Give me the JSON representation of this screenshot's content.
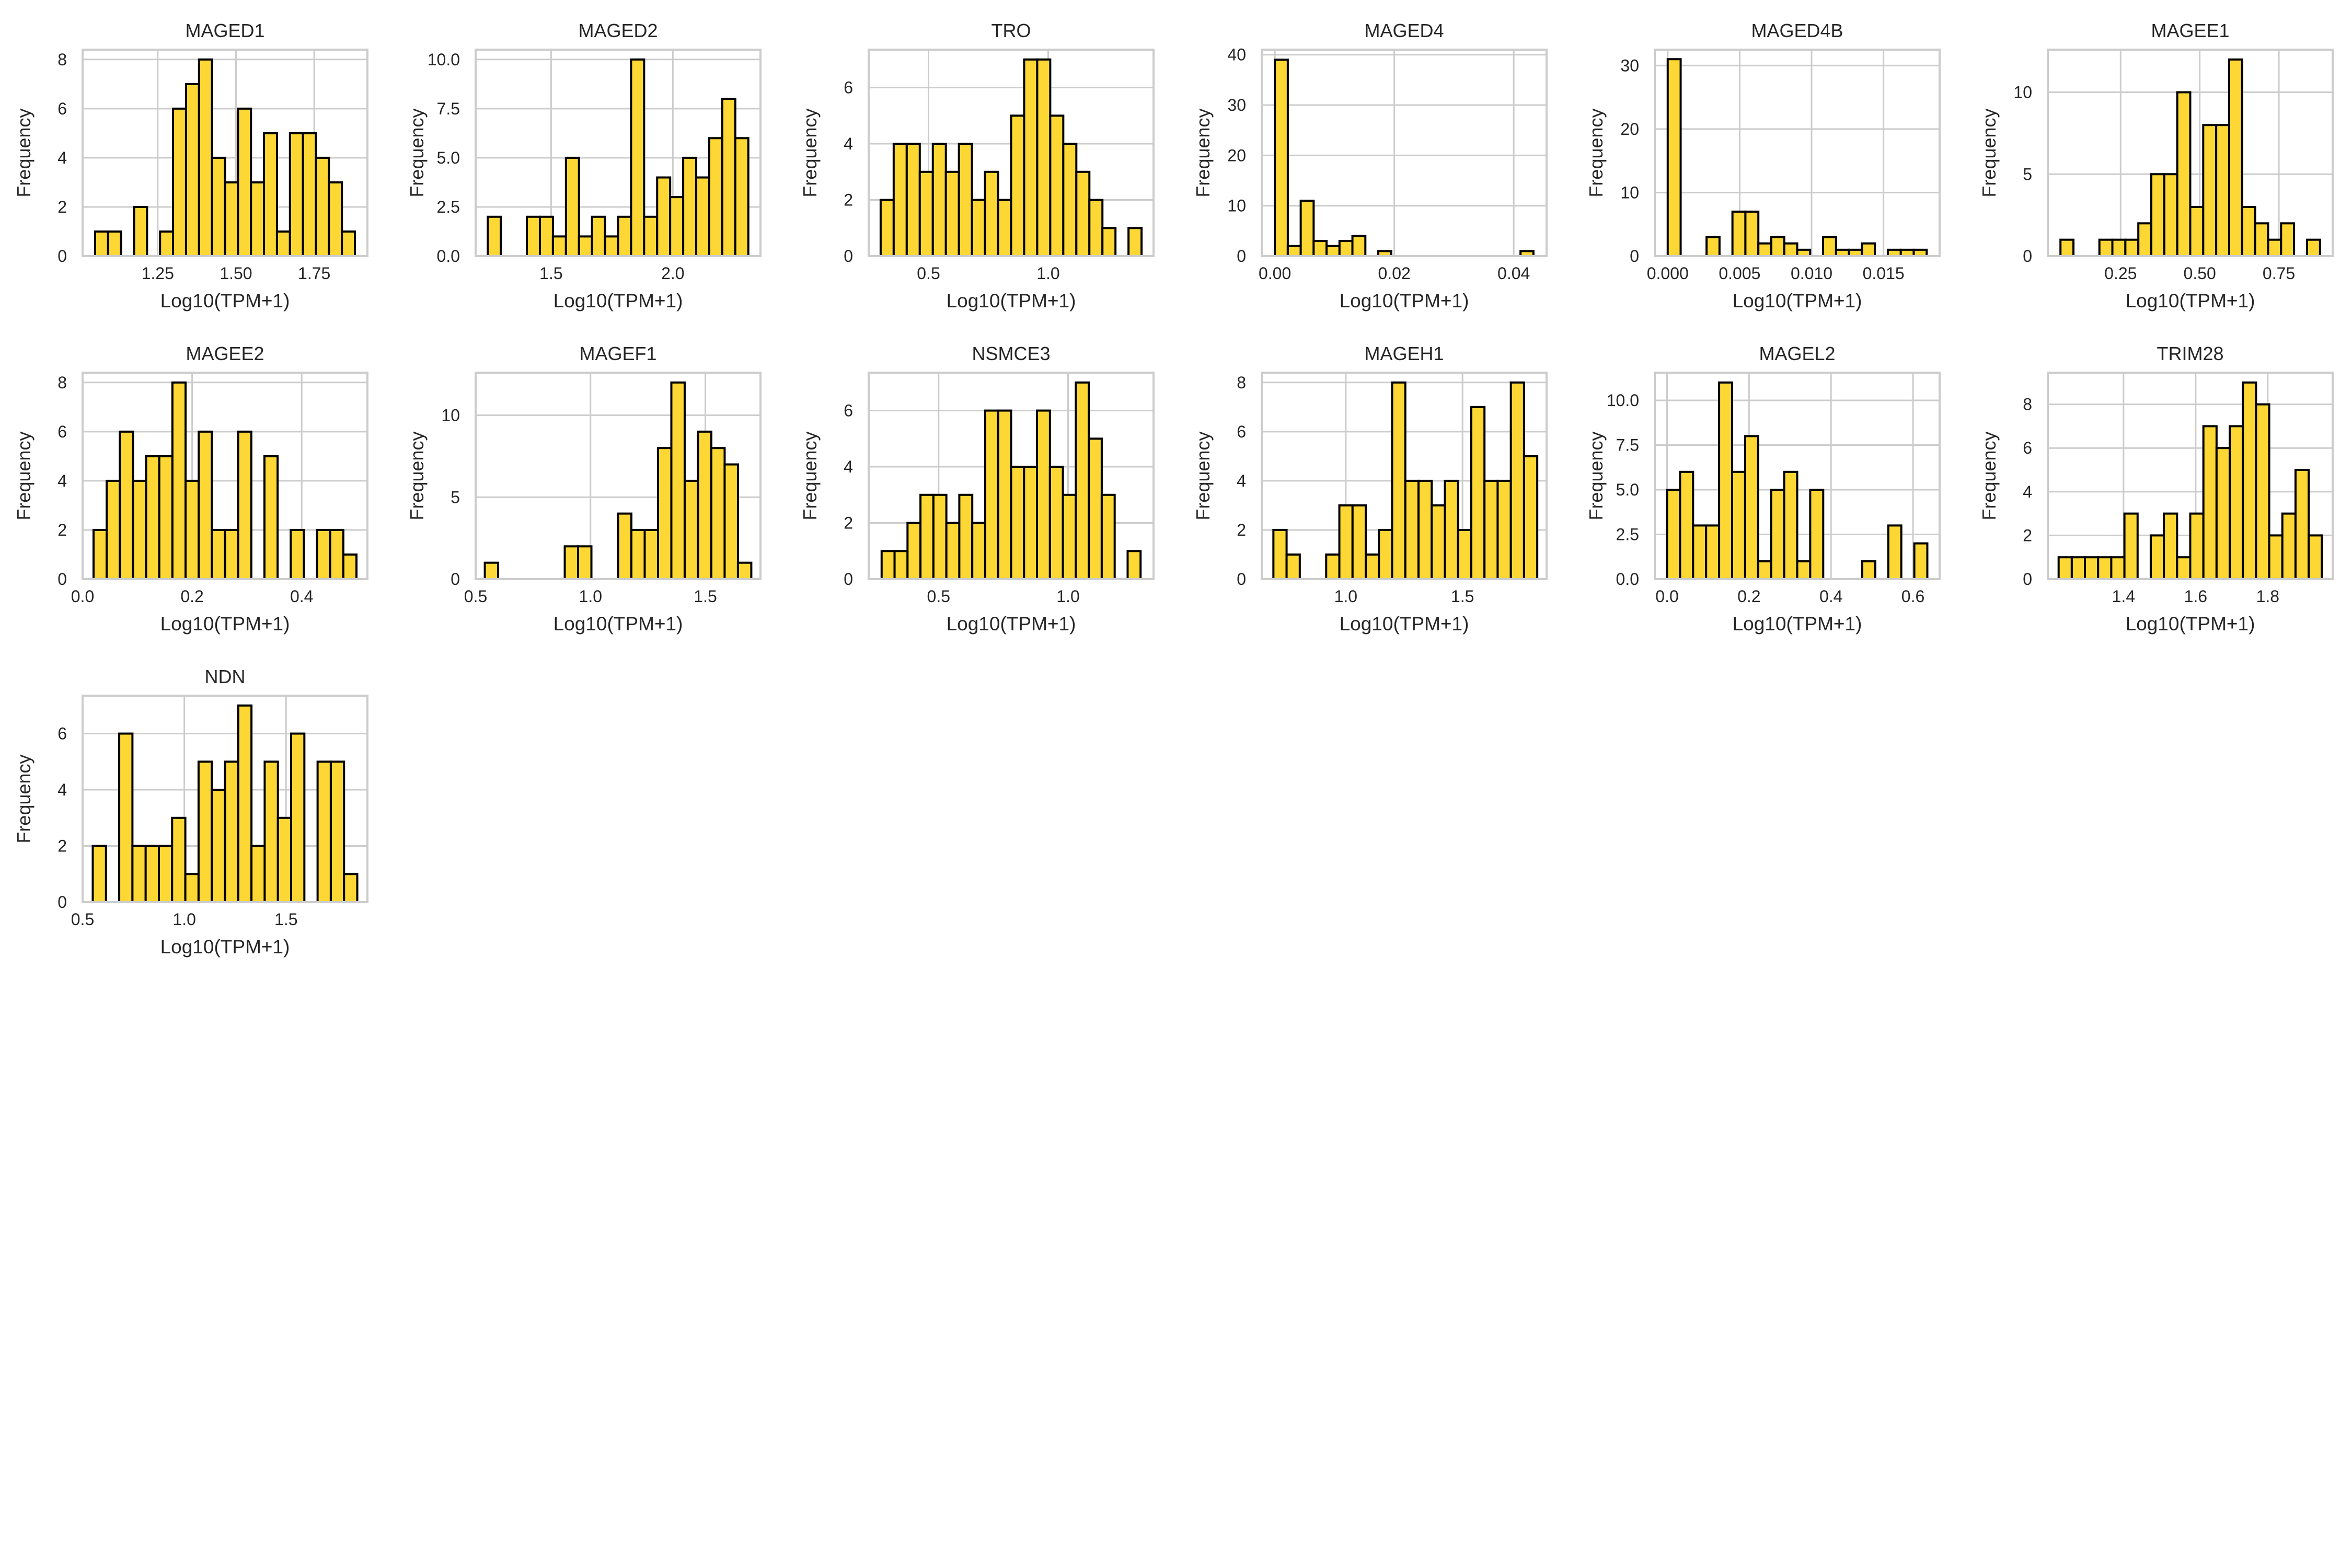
{
  "figure": {
    "background": "#ffffff"
  },
  "style": {
    "bar_fill": "#fdd835",
    "bar_edge": "#000000",
    "grid": "#cccccc",
    "frame": "#cccccc",
    "text": "#262626"
  },
  "chart_data": [
    {
      "type": "bar",
      "title": "MAGED1",
      "xlabel": "Log10(TPM+1)",
      "ylabel": "Frequency",
      "grid": true,
      "xlim": [
        1.01,
        1.92
      ],
      "ylim": [
        0,
        8.4
      ],
      "xticks": [
        1.25,
        1.5,
        1.75
      ],
      "xtick_labels": [
        "1.25",
        "1.50",
        "1.75"
      ],
      "yticks": [
        0,
        2,
        4,
        6,
        8
      ],
      "ytick_labels": [
        "0",
        "2",
        "4",
        "6",
        "8"
      ],
      "bin_start": 1.05,
      "bin_end": 1.88,
      "values": [
        1,
        1,
        0,
        2,
        0,
        1,
        6,
        7,
        8,
        4,
        3,
        6,
        3,
        5,
        1,
        5,
        5,
        4,
        3,
        1
      ]
    },
    {
      "type": "bar",
      "title": "MAGED2",
      "xlabel": "Log10(TPM+1)",
      "ylabel": "Frequency",
      "grid": true,
      "xlim": [
        1.19,
        2.36
      ],
      "ylim": [
        0,
        10.5
      ],
      "xticks": [
        1.5,
        2.0
      ],
      "xtick_labels": [
        "1.5",
        "2.0"
      ],
      "yticks": [
        0,
        2.5,
        5,
        7.5,
        10
      ],
      "ytick_labels": [
        "0.0",
        "2.5",
        "5.0",
        "7.5",
        "10.0"
      ],
      "bin_start": 1.24,
      "bin_end": 2.31,
      "values": [
        2,
        0,
        0,
        2,
        2,
        1,
        5,
        1,
        2,
        1,
        2,
        10,
        2,
        4,
        3,
        5,
        4,
        6,
        8,
        6
      ]
    },
    {
      "type": "bar",
      "title": "TRO",
      "xlabel": "Log10(TPM+1)",
      "ylabel": "Frequency",
      "grid": true,
      "xlim": [
        0.25,
        1.44
      ],
      "ylim": [
        0,
        7.35
      ],
      "xticks": [
        0.5,
        1.0
      ],
      "xtick_labels": [
        "0.5",
        "1.0"
      ],
      "yticks": [
        0,
        2,
        4,
        6
      ],
      "ytick_labels": [
        "0",
        "2",
        "4",
        "6"
      ],
      "bin_start": 0.3,
      "bin_end": 1.39,
      "values": [
        2,
        4,
        4,
        3,
        4,
        3,
        4,
        2,
        3,
        2,
        5,
        7,
        7,
        5,
        4,
        3,
        2,
        1,
        0,
        1
      ]
    },
    {
      "type": "bar",
      "title": "MAGED4",
      "xlabel": "Log10(TPM+1)",
      "ylabel": "Frequency",
      "grid": true,
      "xlim": [
        -0.0022,
        0.0455
      ],
      "ylim": [
        0,
        41
      ],
      "xticks": [
        0,
        0.02,
        0.04
      ],
      "xtick_labels": [
        "0.00",
        "0.02",
        "0.04"
      ],
      "yticks": [
        0,
        10,
        20,
        30,
        40
      ],
      "ytick_labels": [
        "0",
        "10",
        "20",
        "30",
        "40"
      ],
      "bin_start": 0.0,
      "bin_end": 0.0433,
      "values": [
        39,
        2,
        11,
        3,
        2,
        3,
        4,
        0,
        1,
        0,
        0,
        0,
        0,
        0,
        0,
        0,
        0,
        0,
        0,
        1
      ]
    },
    {
      "type": "bar",
      "title": "MAGED4B",
      "xlabel": "Log10(TPM+1)",
      "ylabel": "Frequency",
      "grid": true,
      "xlim": [
        -0.0009,
        0.0189
      ],
      "ylim": [
        0,
        32.5
      ],
      "xticks": [
        0,
        0.005,
        0.01,
        0.015
      ],
      "xtick_labels": [
        "0.000",
        "0.005",
        "0.010",
        "0.015"
      ],
      "yticks": [
        0,
        10,
        20,
        30
      ],
      "ytick_labels": [
        "0",
        "10",
        "20",
        "30"
      ],
      "bin_start": 0.0,
      "bin_end": 0.018,
      "values": [
        31,
        0,
        0,
        3,
        0,
        7,
        7,
        2,
        3,
        2,
        1,
        0,
        3,
        1,
        1,
        2,
        0,
        1,
        1,
        1
      ]
    },
    {
      "type": "bar",
      "title": "MAGEE1",
      "xlabel": "Log10(TPM+1)",
      "ylabel": "Frequency",
      "grid": true,
      "xlim": [
        0.02,
        0.92
      ],
      "ylim": [
        0,
        12.6
      ],
      "xticks": [
        0.25,
        0.5,
        0.75
      ],
      "xtick_labels": [
        "0.25",
        "0.50",
        "0.75"
      ],
      "yticks": [
        0,
        5,
        10
      ],
      "ytick_labels": [
        "0",
        "5",
        "10"
      ],
      "bin_start": 0.06,
      "bin_end": 0.88,
      "values": [
        1,
        0,
        0,
        1,
        1,
        1,
        2,
        5,
        5,
        10,
        3,
        8,
        8,
        12,
        3,
        2,
        1,
        2,
        0,
        1
      ]
    },
    {
      "type": "bar",
      "title": "MAGEE2",
      "xlabel": "Log10(TPM+1)",
      "ylabel": "Frequency",
      "grid": true,
      "xlim": [
        0.0,
        0.52
      ],
      "ylim": [
        0,
        8.4
      ],
      "xticks": [
        0,
        0.2,
        0.4
      ],
      "xtick_labels": [
        "0.0",
        "0.2",
        "0.4"
      ],
      "yticks": [
        0,
        2,
        4,
        6,
        8
      ],
      "ytick_labels": [
        "0",
        "2",
        "4",
        "6",
        "8"
      ],
      "bin_start": 0.02,
      "bin_end": 0.5,
      "values": [
        2,
        4,
        6,
        4,
        5,
        5,
        8,
        4,
        6,
        2,
        2,
        6,
        0,
        5,
        0,
        2,
        0,
        2,
        2,
        1
      ]
    },
    {
      "type": "bar",
      "title": "MAGEF1",
      "xlabel": "Log10(TPM+1)",
      "ylabel": "Frequency",
      "grid": true,
      "xlim": [
        0.5,
        1.74
      ],
      "ylim": [
        0,
        12.6
      ],
      "xticks": [
        0.5,
        1.0,
        1.5
      ],
      "xtick_labels": [
        "0.5",
        "1.0",
        "1.5"
      ],
      "yticks": [
        0,
        5,
        10
      ],
      "ytick_labels": [
        "0",
        "5",
        "10"
      ],
      "bin_start": 0.54,
      "bin_end": 1.7,
      "values": [
        1,
        0,
        0,
        0,
        0,
        0,
        2,
        2,
        0,
        0,
        4,
        3,
        3,
        8,
        12,
        6,
        9,
        8,
        7,
        1
      ]
    },
    {
      "type": "bar",
      "title": "NSMCE3",
      "xlabel": "Log10(TPM+1)",
      "ylabel": "Frequency",
      "grid": true,
      "xlim": [
        0.23,
        1.33
      ],
      "ylim": [
        0,
        7.35
      ],
      "xticks": [
        0.5,
        1.0
      ],
      "xtick_labels": [
        "0.5",
        "1.0"
      ],
      "yticks": [
        0,
        2,
        4,
        6
      ],
      "ytick_labels": [
        "0",
        "2",
        "4",
        "6"
      ],
      "bin_start": 0.28,
      "bin_end": 1.28,
      "values": [
        1,
        1,
        2,
        3,
        3,
        2,
        3,
        2,
        6,
        6,
        4,
        4,
        6,
        4,
        3,
        7,
        5,
        3,
        0,
        1
      ]
    },
    {
      "type": "bar",
      "title": "MAGEH1",
      "xlabel": "Log10(TPM+1)",
      "ylabel": "Frequency",
      "grid": true,
      "xlim": [
        0.64,
        1.86
      ],
      "ylim": [
        0,
        8.4
      ],
      "xticks": [
        1.0,
        1.5
      ],
      "xtick_labels": [
        "1.0",
        "1.5"
      ],
      "yticks": [
        0,
        2,
        4,
        6,
        8
      ],
      "ytick_labels": [
        "0",
        "2",
        "4",
        "6",
        "8"
      ],
      "bin_start": 0.69,
      "bin_end": 1.82,
      "values": [
        2,
        1,
        0,
        0,
        1,
        3,
        3,
        1,
        2,
        8,
        4,
        4,
        3,
        4,
        2,
        7,
        4,
        4,
        8,
        5
      ]
    },
    {
      "type": "bar",
      "title": "MAGEL2",
      "xlabel": "Log10(TPM+1)",
      "ylabel": "Frequency",
      "grid": true,
      "xlim": [
        -0.03,
        0.665
      ],
      "ylim": [
        0,
        11.55
      ],
      "xticks": [
        0,
        0.2,
        0.4,
        0.6
      ],
      "xtick_labels": [
        "0.0",
        "0.2",
        "0.4",
        "0.6"
      ],
      "yticks": [
        0,
        2.5,
        5,
        7.5,
        10
      ],
      "ytick_labels": [
        "0.0",
        "2.5",
        "5.0",
        "7.5",
        "10.0"
      ],
      "bin_start": 0.0,
      "bin_end": 0.635,
      "values": [
        5,
        6,
        3,
        3,
        11,
        6,
        8,
        1,
        5,
        6,
        1,
        5,
        0,
        0,
        0,
        1,
        0,
        3,
        0,
        2
      ]
    },
    {
      "type": "bar",
      "title": "TRIM28",
      "xlabel": "Log10(TPM+1)",
      "ylabel": "Frequency",
      "grid": true,
      "xlim": [
        1.19,
        1.98
      ],
      "ylim": [
        0,
        9.45
      ],
      "xticks": [
        1.4,
        1.6,
        1.8
      ],
      "xtick_labels": [
        "1.4",
        "1.6",
        "1.8"
      ],
      "yticks": [
        0,
        2,
        4,
        6,
        8
      ],
      "ytick_labels": [
        "0",
        "2",
        "4",
        "6",
        "8"
      ],
      "bin_start": 1.22,
      "bin_end": 1.95,
      "values": [
        1,
        1,
        1,
        1,
        1,
        3,
        0,
        2,
        3,
        1,
        3,
        7,
        6,
        7,
        9,
        8,
        2,
        3,
        5,
        2
      ]
    },
    {
      "type": "bar",
      "title": "NDN",
      "xlabel": "Log10(TPM+1)",
      "ylabel": "Frequency",
      "grid": true,
      "xlim": [
        0.5,
        1.9
      ],
      "ylim": [
        0,
        7.35
      ],
      "xticks": [
        0.5,
        1.0,
        1.5
      ],
      "xtick_labels": [
        "0.5",
        "1.0",
        "1.5"
      ],
      "yticks": [
        0,
        2,
        4,
        6
      ],
      "ytick_labels": [
        "0",
        "2",
        "4",
        "6"
      ],
      "bin_start": 0.55,
      "bin_end": 1.85,
      "values": [
        2,
        0,
        6,
        2,
        2,
        2,
        3,
        1,
        5,
        4,
        5,
        7,
        2,
        5,
        3,
        6,
        0,
        5,
        5,
        1
      ]
    }
  ]
}
